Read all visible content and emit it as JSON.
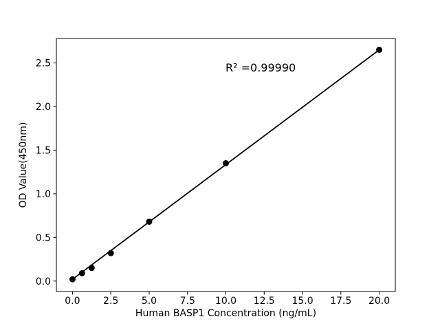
{
  "page": {
    "background": "#ffffff"
  },
  "chart_data": {
    "type": "scatter",
    "title": "",
    "xlabel": "Human BASP1 Concentration (ng/mL)",
    "ylabel": "OD Value(450nm)",
    "annotation": "R² =0.99990",
    "r_squared": 0.9999,
    "series": [
      {
        "name": "standard-points",
        "x": [
          0,
          0.625,
          1.25,
          2.5,
          5,
          10,
          20
        ],
        "y": [
          0.02,
          0.09,
          0.15,
          0.32,
          0.68,
          1.35,
          2.65
        ]
      }
    ],
    "fit_line": {
      "x": [
        0,
        20
      ],
      "y": [
        0.02,
        2.65
      ]
    },
    "xlim": [
      -1.05,
      21.05
    ],
    "ylim": [
      -0.12,
      2.78
    ],
    "xticks": {
      "values": [
        0,
        2.5,
        5,
        7.5,
        10,
        12.5,
        15,
        17.5,
        20
      ],
      "labels": [
        "0.0",
        "2.5",
        "5.0",
        "7.5",
        "10.0",
        "12.5",
        "15.0",
        "17.5",
        "20.0"
      ]
    },
    "yticks": {
      "values": [
        0,
        0.5,
        1,
        1.5,
        2,
        2.5
      ],
      "labels": [
        "0.0",
        "0.5",
        "1.0",
        "1.5",
        "2.0",
        "2.5"
      ]
    },
    "grid": false,
    "legend": false,
    "colors": {
      "marker": "#000000",
      "line": "#000000",
      "axis": "#000000",
      "text": "#000000"
    }
  }
}
